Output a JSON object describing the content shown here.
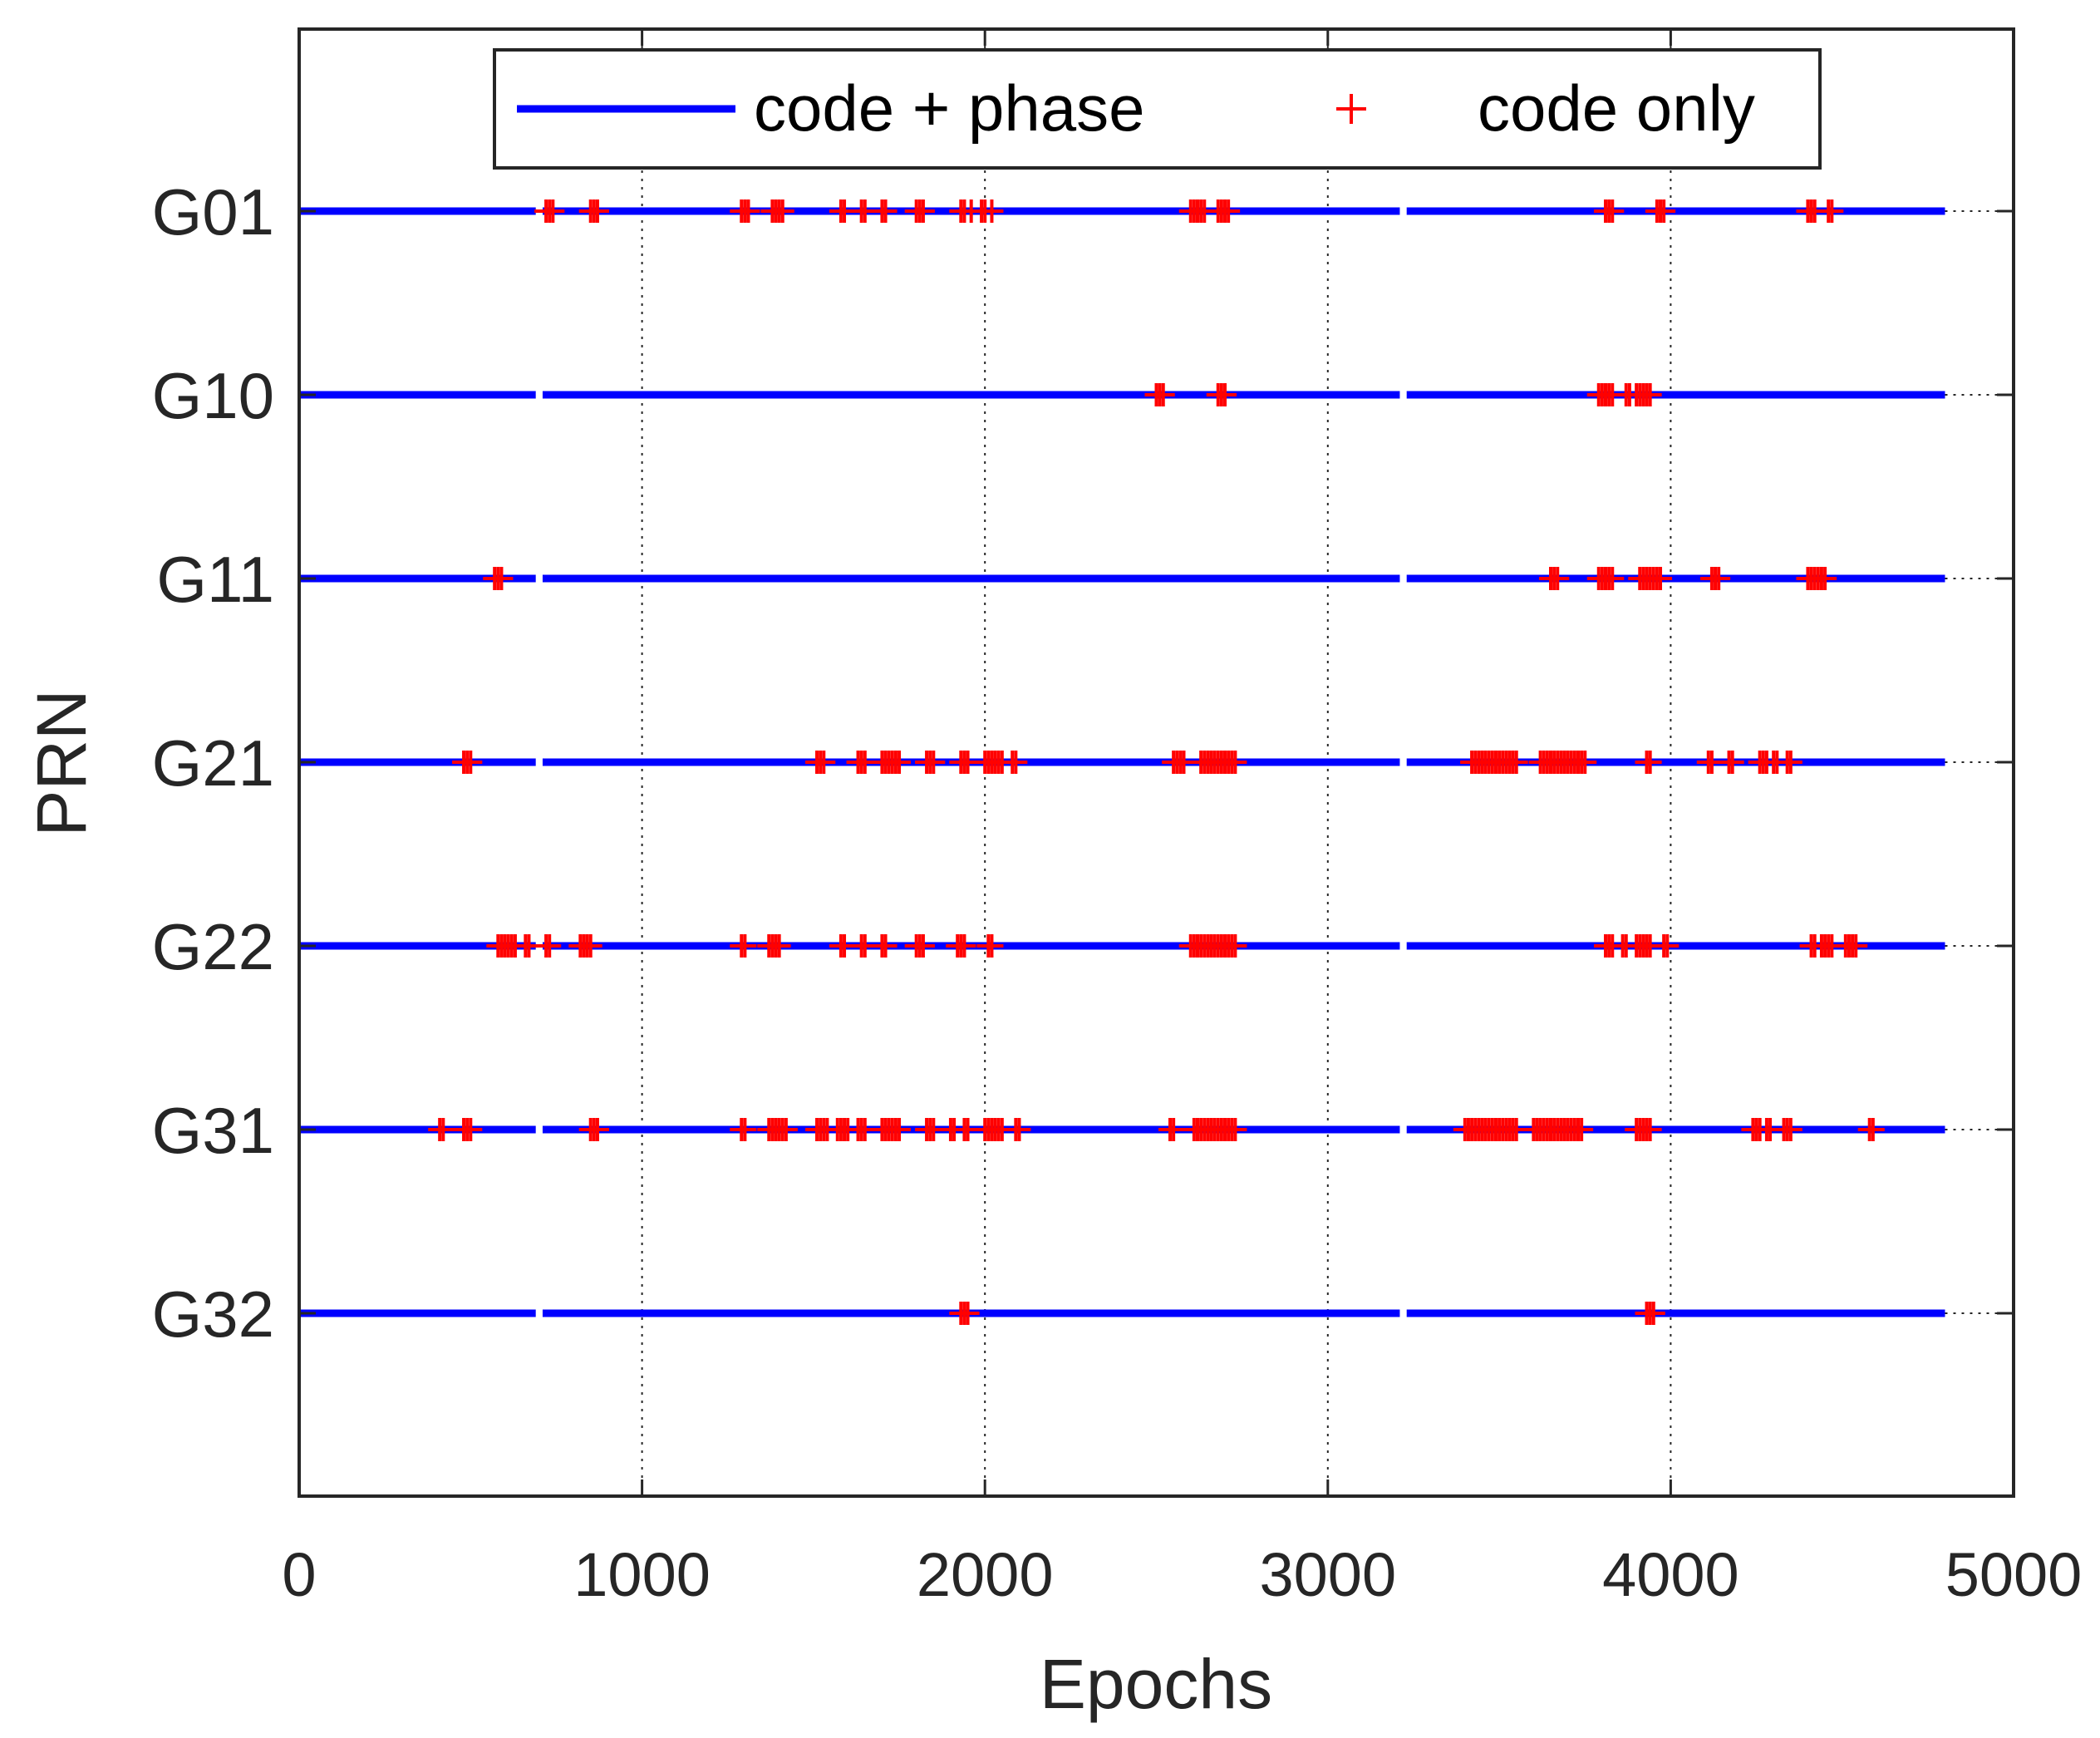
{
  "chart_data": {
    "type": "scatter",
    "title": "",
    "xlabel": "Epochs",
    "ylabel": "PRN",
    "xlim": [
      0,
      5000
    ],
    "xticks": [
      0,
      1000,
      2000,
      3000,
      4000,
      5000
    ],
    "grid": "vertical dotted",
    "legend": {
      "position": "top-center",
      "entries": [
        {
          "label": "code + phase",
          "style": "blue-line",
          "color": "#0000ff"
        },
        {
          "label": "code only",
          "style": "red-plus",
          "color": "#ff0000"
        }
      ]
    },
    "end_epoch": 4800,
    "gaps": [
      [
        690,
        710
      ],
      [
        3210,
        3230
      ]
    ],
    "series": [
      {
        "name": "G01",
        "code_only": [
          720,
          730,
          740,
          850,
          860,
          870,
          1290,
          1300,
          1310,
          1380,
          1390,
          1400,
          1410,
          1580,
          1590,
          1640,
          1650,
          1700,
          1710,
          1800,
          1810,
          1820,
          1930,
          1940,
          1960,
          1990,
          2000,
          2020,
          2600,
          2610,
          2620,
          2630,
          2640,
          2680,
          2690,
          2700,
          2710,
          3810,
          3820,
          3830,
          3960,
          3970,
          3980,
          4400,
          4410,
          4420,
          4460,
          4470
        ]
      },
      {
        "name": "G10",
        "code_only": [
          2500,
          2510,
          2520,
          2680,
          2690,
          2700,
          3790,
          3800,
          3810,
          3820,
          3830,
          3870,
          3880,
          3900,
          3910,
          3920,
          3930,
          3940
        ]
      },
      {
        "name": "G11",
        "code_only": [
          570,
          580,
          590,
          3650,
          3660,
          3670,
          3790,
          3800,
          3810,
          3820,
          3830,
          3910,
          3920,
          3930,
          3940,
          3950,
          3960,
          3970,
          4120,
          4130,
          4140,
          4400,
          4410,
          4420,
          4430,
          4440,
          4450
        ]
      },
      {
        "name": "G21",
        "code_only": [
          480,
          490,
          500,
          1510,
          1520,
          1530,
          1630,
          1640,
          1650,
          1700,
          1710,
          1720,
          1730,
          1740,
          1750,
          1830,
          1840,
          1850,
          1930,
          1940,
          1950,
          2000,
          2010,
          2020,
          2030,
          2040,
          2050,
          2080,
          2090,
          2550,
          2560,
          2570,
          2580,
          2630,
          2640,
          2650,
          2660,
          2670,
          2680,
          2690,
          2700,
          2710,
          2720,
          2730,
          3420,
          3430,
          3440,
          3450,
          3460,
          3470,
          3480,
          3490,
          3500,
          3510,
          3520,
          3530,
          3540,
          3550,
          3620,
          3630,
          3640,
          3650,
          3660,
          3670,
          3680,
          3690,
          3700,
          3710,
          3720,
          3730,
          3740,
          3750,
          3930,
          3940,
          4110,
          4120,
          4170,
          4180,
          4260,
          4270,
          4280,
          4300,
          4310,
          4340,
          4350
        ]
      },
      {
        "name": "G22",
        "code_only": [
          580,
          590,
          600,
          610,
          620,
          630,
          660,
          670,
          720,
          730,
          820,
          830,
          840,
          850,
          1290,
          1300,
          1370,
          1380,
          1390,
          1400,
          1580,
          1590,
          1640,
          1650,
          1700,
          1710,
          1800,
          1810,
          1820,
          1920,
          1930,
          1940,
          2010,
          2020,
          2600,
          2610,
          2620,
          2630,
          2640,
          2650,
          2660,
          2670,
          2680,
          2690,
          2700,
          2710,
          2720,
          2730,
          3810,
          3820,
          3830,
          3860,
          3870,
          3900,
          3910,
          3920,
          3930,
          3940,
          3980,
          3990,
          4410,
          4420,
          4440,
          4450,
          4460,
          4470,
          4510,
          4520,
          4530,
          4540
        ]
      },
      {
        "name": "G31",
        "code_only": [
          410,
          420,
          480,
          490,
          500,
          850,
          860,
          870,
          1290,
          1300,
          1370,
          1380,
          1390,
          1400,
          1410,
          1420,
          1510,
          1520,
          1530,
          1540,
          1570,
          1580,
          1590,
          1600,
          1630,
          1640,
          1650,
          1700,
          1710,
          1720,
          1730,
          1740,
          1750,
          1830,
          1840,
          1850,
          1900,
          1910,
          1940,
          1950,
          2000,
          2010,
          2020,
          2030,
          2040,
          2050,
          2090,
          2100,
          2540,
          2550,
          2610,
          2620,
          2630,
          2640,
          2650,
          2660,
          2670,
          2680,
          2690,
          2700,
          2710,
          2720,
          2730,
          3400,
          3410,
          3420,
          3430,
          3440,
          3450,
          3460,
          3470,
          3480,
          3490,
          3500,
          3510,
          3520,
          3530,
          3540,
          3550,
          3600,
          3610,
          3620,
          3630,
          3640,
          3650,
          3660,
          3670,
          3680,
          3690,
          3700,
          3710,
          3720,
          3730,
          3740,
          3900,
          3910,
          3920,
          3930,
          3940,
          4240,
          4250,
          4260,
          4280,
          4290,
          4330,
          4340,
          4350,
          4580,
          4590
        ]
      },
      {
        "name": "G32",
        "code_only": [
          1930,
          1940,
          1950,
          3930,
          3940,
          3950
        ]
      }
    ]
  }
}
